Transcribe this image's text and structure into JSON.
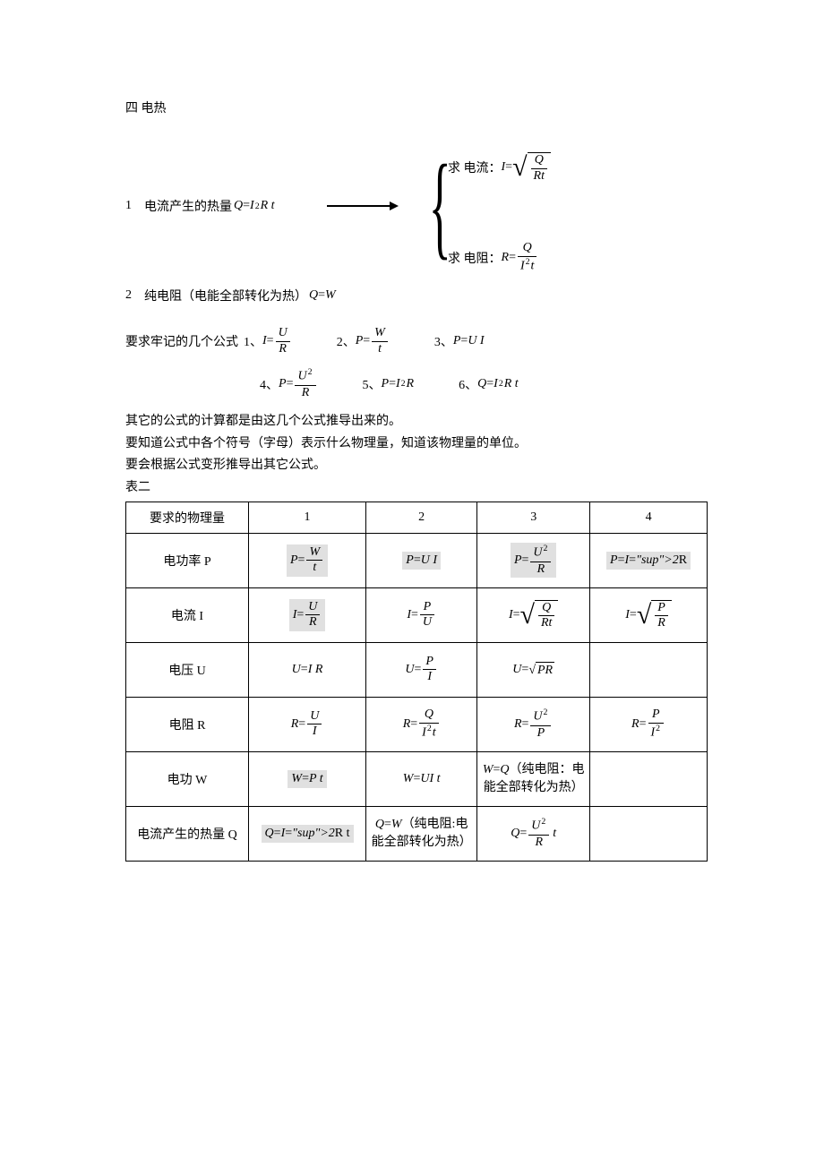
{
  "title": "四 电热",
  "derive": {
    "left_num": "1",
    "left_text": "电流产生的热量",
    "left_formula": {
      "lhs": "Q",
      "rhs": "I²R t"
    },
    "r1_label": "求 电流：",
    "r1": {
      "lhs": "I",
      "sqrt_num": "Q",
      "sqrt_den": "Rt"
    },
    "r2_label": "求 电阻：",
    "r2": {
      "lhs": "R",
      "num": "Q",
      "den": "I²t"
    }
  },
  "line2": {
    "num": "2",
    "text": "纯电阻（电能全部转化为热）",
    "formula": "Q=W"
  },
  "req_label": "要求牢记的几个公式",
  "req_items": [
    {
      "n": "1、",
      "f": "I = U/R"
    },
    {
      "n": "2、",
      "f": "P = W/t"
    },
    {
      "n": "3、",
      "f": "P = U I"
    },
    {
      "n": "4、",
      "f": "P = U²/R"
    },
    {
      "n": "5、",
      "f": "P = I²R"
    },
    {
      "n": "6、",
      "f": "Q = I²R t"
    }
  ],
  "notes": [
    "其它的公式的计算都是由这几个公式推导出来的。",
    "要知道公式中各个符号（字母）表示什么物理量，知道该物理量的单位。",
    "要会根据公式变形推导出其它公式。",
    "表二"
  ],
  "table": {
    "columns": [
      "要求的物理量",
      "1",
      "2",
      "3",
      "4"
    ],
    "rows": [
      {
        "label": "电功率 P",
        "cells": [
          {
            "hl": true,
            "type": "frac",
            "lhs": "P",
            "num": "W",
            "den": "t"
          },
          {
            "hl": true,
            "type": "plain",
            "text": "P =U I"
          },
          {
            "hl": true,
            "type": "frac",
            "lhs": "P",
            "num": "U²",
            "den": "R"
          },
          {
            "hl": true,
            "type": "plain",
            "text": "P= I² R"
          }
        ]
      },
      {
        "label": "电流 I",
        "cells": [
          {
            "hl": true,
            "type": "frac",
            "lhs": "I",
            "num": "U",
            "den": "R"
          },
          {
            "hl": false,
            "type": "frac",
            "lhs": "I",
            "num": "P",
            "den": "U"
          },
          {
            "hl": false,
            "type": "sqrtfrac",
            "lhs": "I",
            "num": "Q",
            "den": "Rt"
          },
          {
            "hl": false,
            "type": "sqrtfrac",
            "lhs": "I",
            "num": "P",
            "den": "R"
          }
        ]
      },
      {
        "label": "电压 U",
        "cells": [
          {
            "hl": false,
            "type": "plain",
            "text": "U =I R"
          },
          {
            "hl": false,
            "type": "frac",
            "lhs": "U",
            "num": "P",
            "den": "I"
          },
          {
            "hl": false,
            "type": "sqrt",
            "lhs": "U",
            "radicand": "PR"
          },
          {
            "hl": false,
            "type": "empty"
          }
        ]
      },
      {
        "label": "电阻 R",
        "cells": [
          {
            "hl": false,
            "type": "frac",
            "lhs": "R",
            "num": "U",
            "den": "I"
          },
          {
            "hl": false,
            "type": "frac",
            "lhs": "R",
            "num": "Q",
            "den": "I²t"
          },
          {
            "hl": false,
            "type": "frac",
            "lhs": "R",
            "num": "U²",
            "den": "P"
          },
          {
            "hl": false,
            "type": "frac",
            "lhs": "R",
            "num": "P",
            "den": "I²"
          }
        ]
      },
      {
        "label": "电功 W",
        "cells": [
          {
            "hl": true,
            "type": "plain",
            "text": "W = P t"
          },
          {
            "hl": false,
            "type": "plain",
            "text": "W = UI t"
          },
          {
            "hl": false,
            "type": "note",
            "text": "W=Q（纯电阻：电能全部转化为热）"
          },
          {
            "hl": false,
            "type": "empty"
          }
        ]
      },
      {
        "label": "电流产生的热量 Q",
        "cells": [
          {
            "hl": true,
            "type": "plain",
            "text": "Q= I² R t"
          },
          {
            "hl": false,
            "type": "note",
            "text": "Q=W （纯电阻:电能全部转化为热）"
          },
          {
            "hl": false,
            "type": "fract",
            "lhs": "Q",
            "num": "U²",
            "den": "R",
            "tail": "t"
          },
          {
            "hl": false,
            "type": "empty"
          }
        ]
      }
    ]
  },
  "colors": {
    "bg": "#ffffff",
    "text": "#000000",
    "highlight": "#e0e0e0",
    "border": "#000000"
  }
}
